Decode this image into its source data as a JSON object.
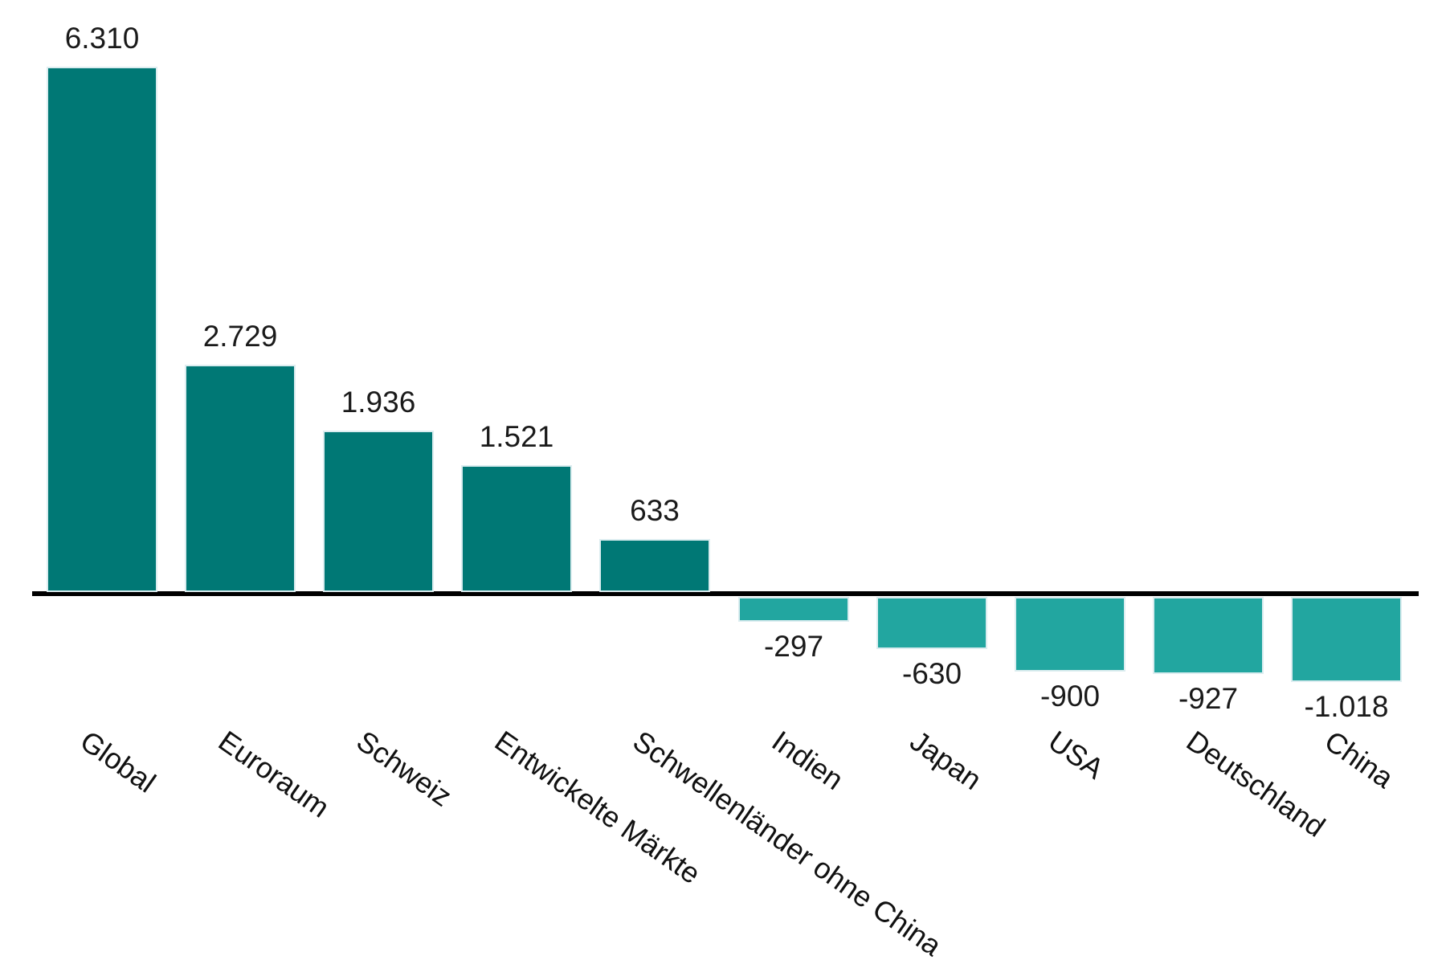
{
  "chart_data": {
    "type": "bar",
    "title": "",
    "xlabel": "",
    "ylabel": "",
    "categories": [
      "Global",
      "Euroraum",
      "Schweiz",
      "Entwickelte Märkte",
      "Schwellenländer ohne China",
      "Indien",
      "Japan",
      "USA",
      "Deutschland",
      "China"
    ],
    "values": [
      6310,
      2729,
      1936,
      1521,
      633,
      -297,
      -630,
      -900,
      -927,
      -1018
    ],
    "value_labels": [
      "6.310",
      "2.729",
      "1.936",
      "1.521",
      "633",
      "-297",
      "-630",
      "-900",
      "-927",
      "-1.018"
    ],
    "ylim": [
      -1100,
      6700
    ],
    "layout": {
      "grid": false,
      "legend": false,
      "background": "#ffffff",
      "positive_bar_color": "#007875",
      "negative_bar_color": "#22a6a0",
      "bar_border_color": "#dcedf0",
      "axis_line_color": "#000000",
      "value_label_color": "#1a1a1a",
      "category_label_color": "#111111",
      "category_label_rotation_deg": 35,
      "value_label_position": "outside-end",
      "number_format": "de-thousands-dot",
      "baseline_value": 0
    }
  }
}
